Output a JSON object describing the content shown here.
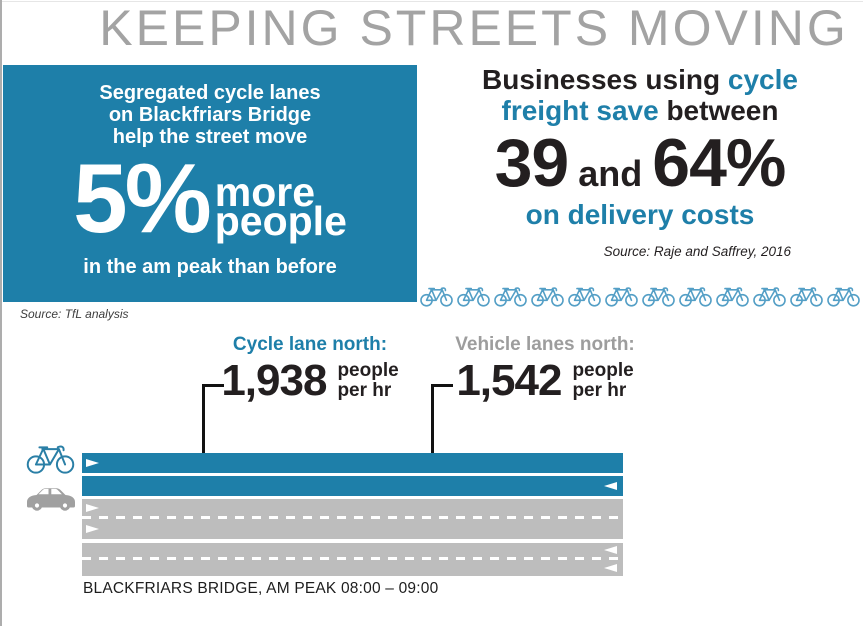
{
  "page": {
    "title": "KEEPING STREETS MOVING"
  },
  "colors": {
    "blue": "#1e7fa9",
    "light_blue": "#549fc6",
    "lane_gray": "#bdbdbd",
    "icon_gray": "#a0a0a0",
    "title_gray": "#a3a3a3",
    "label_gray": "#9d9d9d",
    "text_black": "#231f20"
  },
  "stat_box": {
    "intro_line1": "Segregated cycle lanes",
    "intro_line2": "on Blackfriars Bridge",
    "intro_line3": "help the street move",
    "value": "5%",
    "value_label_line1": "more",
    "value_label_line2": "people",
    "footer": "in the am peak than before",
    "source": "Source: TfL analysis"
  },
  "freight": {
    "heading_l1_black": "Businesses using ",
    "heading_l1_blue": "cycle",
    "heading_l2_blue": "freight save ",
    "heading_l2_black": "between",
    "value_low": "39",
    "conjunction": "and",
    "value_high": "64%",
    "tagline": "on delivery costs",
    "source": "Source: Raje and Saffrey, 2016",
    "bike_count": 12
  },
  "flow_stats": {
    "cycle": {
      "label": "Cycle lane north:",
      "value": "1,938",
      "unit_line1": "people",
      "unit_line2": "per hr"
    },
    "vehicle": {
      "label": "Vehicle lanes north:",
      "value": "1,542",
      "unit_line1": "people",
      "unit_line2": "per hr"
    }
  },
  "road": {
    "caption": "BLACKFRIARS BRIDGE, AM PEAK 08:00 – 09:00",
    "lanes": [
      {
        "kind": "cycle",
        "direction": "right",
        "height": 20
      },
      {
        "kind": "separator-line",
        "height": 3
      },
      {
        "kind": "cycle",
        "direction": "left",
        "height": 20
      },
      {
        "kind": "gap",
        "height": 3
      },
      {
        "kind": "vehicle",
        "direction": "right",
        "height": 17
      },
      {
        "kind": "separator-dashed",
        "height": 3
      },
      {
        "kind": "vehicle",
        "direction": "right",
        "height": 20
      },
      {
        "kind": "gap",
        "height": 4
      },
      {
        "kind": "vehicle",
        "direction": "left",
        "height": 14
      },
      {
        "kind": "separator-dashed",
        "height": 3
      },
      {
        "kind": "vehicle",
        "direction": "left",
        "height": 16
      }
    ]
  }
}
